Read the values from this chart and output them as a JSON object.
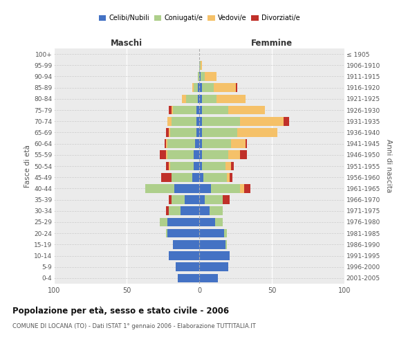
{
  "age_groups": [
    "0-4",
    "5-9",
    "10-14",
    "15-19",
    "20-24",
    "25-29",
    "30-34",
    "35-39",
    "40-44",
    "45-49",
    "50-54",
    "55-59",
    "60-64",
    "65-69",
    "70-74",
    "75-79",
    "80-84",
    "85-89",
    "90-94",
    "95-99",
    "100+"
  ],
  "birth_years": [
    "2001-2005",
    "1996-2000",
    "1991-1995",
    "1986-1990",
    "1981-1985",
    "1976-1980",
    "1971-1975",
    "1966-1970",
    "1961-1965",
    "1956-1960",
    "1951-1955",
    "1946-1950",
    "1941-1945",
    "1936-1940",
    "1931-1935",
    "1926-1930",
    "1921-1925",
    "1916-1920",
    "1911-1915",
    "1906-1910",
    "≤ 1905"
  ],
  "male": {
    "celibi": [
      15,
      16,
      21,
      18,
      22,
      22,
      13,
      10,
      17,
      5,
      4,
      4,
      3,
      2,
      2,
      2,
      1,
      1,
      0,
      0,
      0
    ],
    "coniugati": [
      0,
      0,
      0,
      0,
      1,
      5,
      8,
      9,
      20,
      14,
      16,
      18,
      19,
      18,
      17,
      16,
      8,
      3,
      1,
      0,
      0
    ],
    "vedovi": [
      0,
      0,
      0,
      0,
      0,
      0,
      0,
      0,
      0,
      0,
      1,
      1,
      1,
      1,
      3,
      1,
      3,
      1,
      0,
      0,
      0
    ],
    "divorziati": [
      0,
      0,
      0,
      0,
      0,
      0,
      2,
      2,
      0,
      7,
      2,
      4,
      1,
      2,
      0,
      2,
      0,
      0,
      0,
      0,
      0
    ]
  },
  "female": {
    "nubili": [
      13,
      20,
      21,
      18,
      17,
      11,
      7,
      4,
      8,
      3,
      2,
      2,
      2,
      2,
      2,
      2,
      2,
      2,
      1,
      0,
      0
    ],
    "coniugate": [
      0,
      0,
      0,
      1,
      2,
      5,
      9,
      12,
      20,
      16,
      16,
      18,
      20,
      24,
      26,
      18,
      10,
      8,
      3,
      1,
      0
    ],
    "vedove": [
      0,
      0,
      0,
      0,
      0,
      0,
      0,
      0,
      3,
      2,
      4,
      8,
      10,
      28,
      30,
      25,
      20,
      15,
      8,
      1,
      0
    ],
    "divorziate": [
      0,
      0,
      0,
      0,
      0,
      0,
      0,
      5,
      4,
      2,
      2,
      5,
      1,
      0,
      4,
      0,
      0,
      1,
      0,
      0,
      0
    ]
  },
  "colors": {
    "celibi": "#4472C4",
    "coniugati": "#AECF8B",
    "vedovi": "#F5C169",
    "divorziati": "#C0302A"
  },
  "title": "Popolazione per età, sesso e stato civile - 2006",
  "subtitle": "COMUNE DI LOCANA (TO) - Dati ISTAT 1° gennaio 2006 - Elaborazione TUTTITALIA.IT",
  "xlabel_left": "Maschi",
  "xlabel_right": "Femmine",
  "ylabel_left": "Fasce di età",
  "ylabel_right": "Anni di nascita",
  "xlim": 100,
  "bg_color": "#ffffff",
  "plot_bg": "#ebebeb"
}
